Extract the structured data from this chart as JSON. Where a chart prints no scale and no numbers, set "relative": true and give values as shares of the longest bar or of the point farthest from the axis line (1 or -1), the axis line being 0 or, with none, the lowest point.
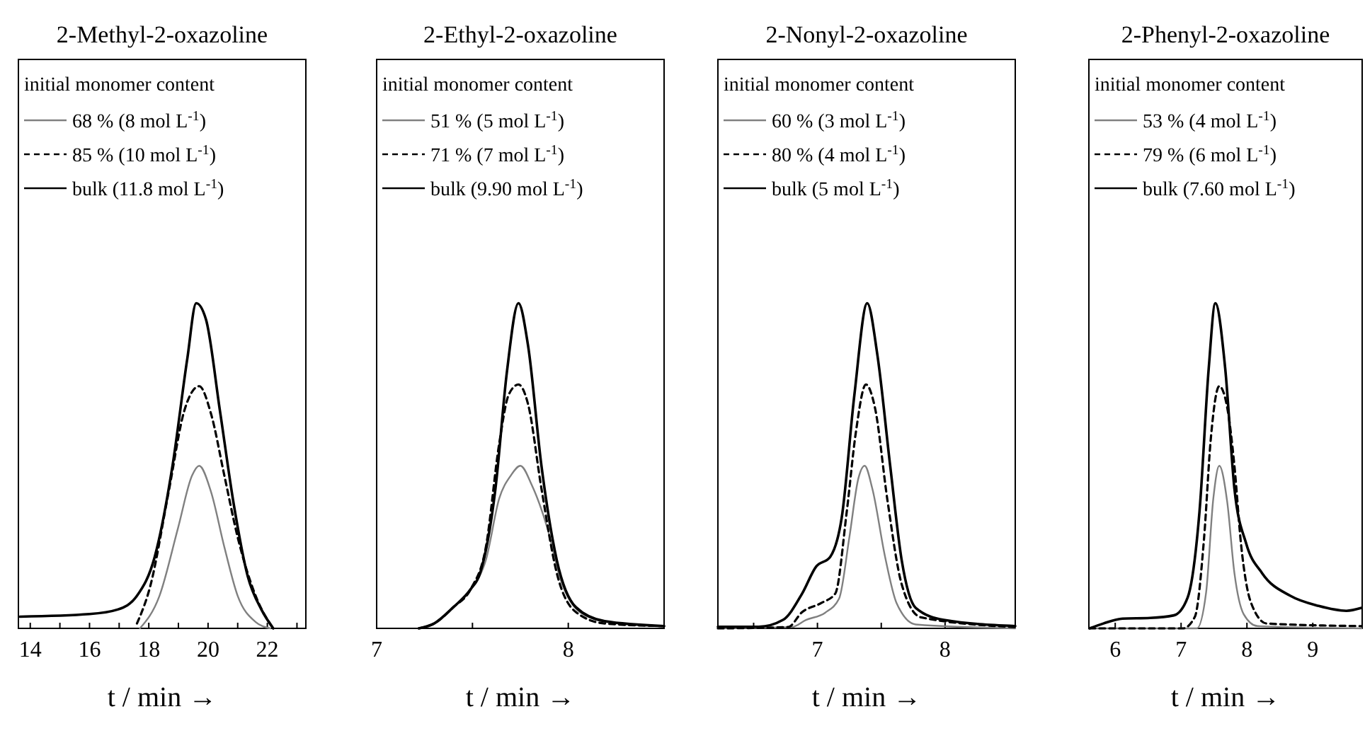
{
  "chart_data": [
    {
      "type": "line",
      "title": "2-Methyl-2-oxazoline",
      "xlabel": "t / min →",
      "legend_title": "initial monomer content",
      "legend": "top left",
      "relative": true,
      "tick_labels": "x",
      "xlim": [
        13.6,
        23.3
      ],
      "xticks": [
        14,
        {
          "value": 15,
          "label": null
        },
        16,
        {
          "value": 17,
          "label": null
        },
        18,
        {
          "value": 19,
          "label": null
        },
        20,
        {
          "value": 21,
          "label": null
        },
        22,
        {
          "value": 23,
          "label": null
        }
      ],
      "series": [
        {
          "name": "68 % (8 mol L$^{-1}$)",
          "color": "#808080",
          "line_style": "solid",
          "x": [
            17.7,
            18.36,
            18.99,
            19.46,
            19.7,
            20.1,
            20.55,
            21.0,
            21.6,
            22.1
          ],
          "values": [
            0,
            0.1,
            0.31,
            0.47,
            0.5,
            0.42,
            0.25,
            0.1,
            0.02,
            0
          ]
        },
        {
          "name": "85 % (10 mol L$^{-1}$)",
          "color": "#000000",
          "line_style": "dashed",
          "x": [
            17.6,
            18.05,
            18.67,
            19.2,
            19.7,
            20.1,
            20.55,
            21.0,
            21.65,
            22.2
          ],
          "values": [
            0.015,
            0.13,
            0.42,
            0.67,
            0.745,
            0.66,
            0.47,
            0.28,
            0.09,
            0
          ]
        },
        {
          "name": "bulk (11.8 mol L$^{-1}$)",
          "color": "#000000",
          "line_style": "solid",
          "x": [
            13.65,
            16,
            16.95,
            17.6,
            18.2,
            18.8,
            19.3,
            19.6,
            19.93,
            20.4,
            20.87,
            21.34,
            21.8,
            22.2
          ],
          "values": [
            0.036,
            0.044,
            0.058,
            0.1,
            0.22,
            0.5,
            0.83,
            1,
            0.95,
            0.67,
            0.38,
            0.16,
            0.058,
            0
          ]
        }
      ]
    },
    {
      "type": "line",
      "title": "2-Ethyl-2-oxazoline",
      "xlabel": "t / min →",
      "legend_title": "initial monomer content",
      "legend": "top left",
      "relative": true,
      "tick_labels": "x",
      "xlim": [
        7,
        8.5
      ],
      "xticks": [
        7,
        {
          "value": 7.5,
          "label": null
        },
        8
      ],
      "series": [
        {
          "name": "51 % (5 mol L$^{-1}$)",
          "color": "#808080",
          "line_style": "solid",
          "x": [
            7.22,
            7.3,
            7.4,
            7.49,
            7.57,
            7.64,
            7.7,
            7.75,
            7.81,
            7.89,
            7.96,
            8.06,
            8.19,
            8.5
          ],
          "values": [
            0,
            0.015,
            0.065,
            0.12,
            0.21,
            0.4,
            0.47,
            0.5,
            0.44,
            0.31,
            0.15,
            0.05,
            0.022,
            0.007
          ]
        },
        {
          "name": "71 % (7 mol L$^{-1}$)",
          "color": "#000000",
          "line_style": "dashed",
          "x": [
            7.22,
            7.3,
            7.4,
            7.49,
            7.57,
            7.64,
            7.69,
            7.74,
            7.79,
            7.86,
            7.94,
            8.04,
            8.19,
            8.5
          ],
          "values": [
            0,
            0.015,
            0.065,
            0.12,
            0.25,
            0.57,
            0.72,
            0.75,
            0.69,
            0.43,
            0.17,
            0.05,
            0.015,
            0.007
          ]
        },
        {
          "name": "bulk (9.90 mol L$^{-1}$)",
          "color": "#000000",
          "line_style": "solid",
          "x": [
            7.22,
            7.3,
            7.4,
            7.49,
            7.54,
            7.62,
            7.68,
            7.74,
            7.79,
            7.86,
            7.94,
            8.04,
            8.19,
            8.5
          ],
          "values": [
            0,
            0.015,
            0.065,
            0.12,
            0.17,
            0.43,
            0.79,
            1,
            0.87,
            0.5,
            0.21,
            0.065,
            0.022,
            0.007
          ]
        }
      ]
    },
    {
      "type": "line",
      "title": "2-Nonyl-2-oxazoline",
      "xlabel": "t / min →",
      "legend_title": "initial monomer content",
      "legend": "top left",
      "relative": true,
      "tick_labels": "x",
      "xlim": [
        6.22,
        8.55
      ],
      "xticks": [
        {
          "value": 6.5,
          "label": null
        },
        7,
        {
          "value": 7.5,
          "label": null
        },
        8
      ],
      "series": [
        {
          "name": "60 % (3 mol L$^{-1}$)",
          "color": "#808080",
          "line_style": "solid",
          "x": [
            6.22,
            6.8,
            6.91,
            7.06,
            7.17,
            7.25,
            7.32,
            7.37,
            7.43,
            7.53,
            7.62,
            7.77,
            8.55
          ],
          "values": [
            0,
            0.004,
            0.026,
            0.048,
            0.092,
            0.28,
            0.46,
            0.5,
            0.43,
            0.22,
            0.078,
            0.012,
            0
          ]
        },
        {
          "name": "80 % (4 mol L$^{-1}$)",
          "color": "#000000",
          "line_style": "dashed",
          "x": [
            6.22,
            6.77,
            6.88,
            7.03,
            7.14,
            7.23,
            7.3,
            7.38,
            7.45,
            7.55,
            7.66,
            7.81,
            8.55
          ],
          "values": [
            0,
            0.004,
            0.05,
            0.078,
            0.107,
            0.36,
            0.6,
            0.75,
            0.68,
            0.39,
            0.136,
            0.034,
            0.004
          ]
        },
        {
          "name": "bulk (5 mol L$^{-1}$)",
          "color": "#000000",
          "line_style": "solid",
          "x": [
            6.22,
            6.54,
            6.73,
            6.88,
            6.99,
            7.1,
            7.19,
            7.29,
            7.39,
            7.47,
            7.57,
            7.66,
            7.77,
            7.99,
            8.55
          ],
          "values": [
            0.005,
            0.005,
            0.026,
            0.107,
            0.19,
            0.22,
            0.34,
            0.72,
            1,
            0.84,
            0.5,
            0.21,
            0.063,
            0.026,
            0.007
          ]
        }
      ]
    },
    {
      "type": "line",
      "title": "2-Phenyl-2-oxazoline",
      "xlabel": "t / min →",
      "legend_title": "initial monomer content",
      "legend": "top left",
      "relative": true,
      "tick_labels": "x",
      "xlim": [
        5.6,
        9.75
      ],
      "xticks": [
        6,
        7,
        8,
        9
      ],
      "series": [
        {
          "name": "53 % (4 mol L$^{-1}$)",
          "color": "#808080",
          "line_style": "solid",
          "x": [
            5.61,
            7.24,
            7.38,
            7.49,
            7.58,
            7.7,
            7.81,
            7.95,
            8.16,
            9.74
          ],
          "values": [
            0,
            0,
            0.11,
            0.4,
            0.5,
            0.39,
            0.17,
            0.044,
            0.007,
            0
          ]
        },
        {
          "name": "79 % (6 mol L$^{-1}$)",
          "color": "#000000",
          "line_style": "dashed",
          "x": [
            5.61,
            7.03,
            7.21,
            7.35,
            7.45,
            7.58,
            7.7,
            7.81,
            7.91,
            8.06,
            8.3,
            9.74
          ],
          "values": [
            0,
            0,
            0.036,
            0.28,
            0.58,
            0.745,
            0.68,
            0.5,
            0.26,
            0.08,
            0.015,
            0.007
          ]
        },
        {
          "name": "bulk (7.60 mol L$^{-1}$)",
          "color": "#000000",
          "line_style": "solid",
          "x": [
            5.61,
            5.82,
            6.11,
            6.53,
            6.89,
            7.1,
            7.28,
            7.42,
            7.52,
            7.67,
            7.81,
            7.99,
            8.23,
            8.66,
            9.09,
            9.51,
            9.74
          ],
          "values": [
            0,
            0.015,
            0.03,
            0.032,
            0.04,
            0.095,
            0.36,
            0.8,
            1,
            0.8,
            0.43,
            0.26,
            0.17,
            0.1,
            0.069,
            0.054,
            0.063
          ]
        }
      ]
    }
  ]
}
